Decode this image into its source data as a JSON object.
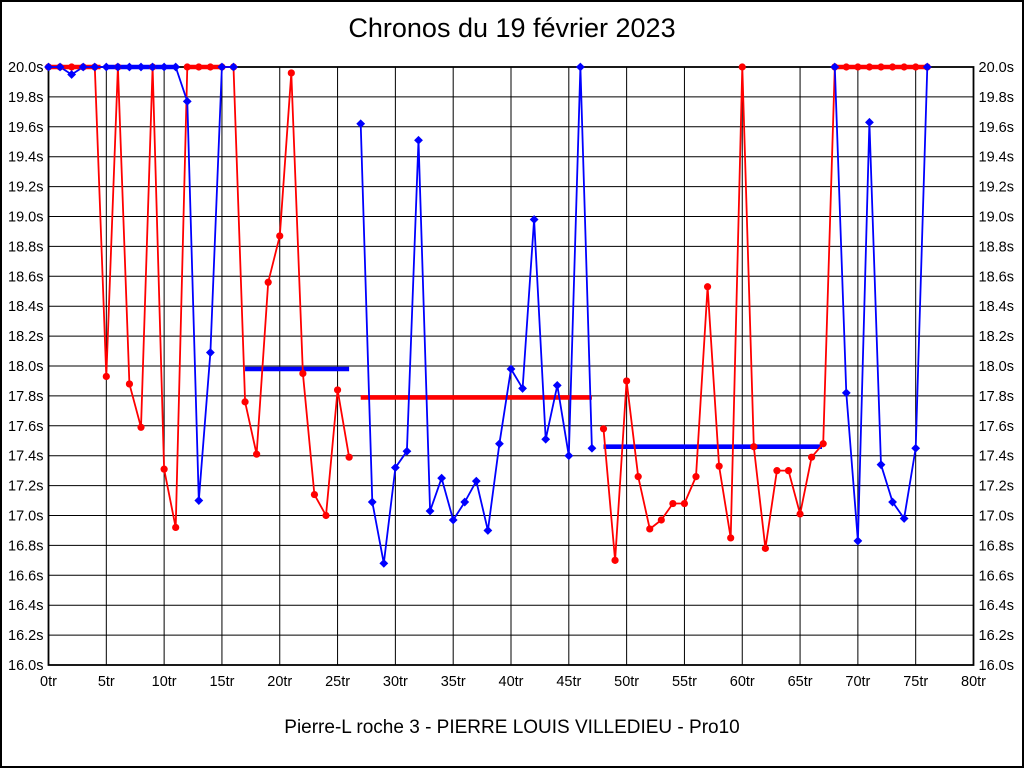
{
  "page": {
    "title": "Chronos du 19 février 2023",
    "footer": "Pierre-L roche 3 - PIERRE LOUIS VILLEDIEU - Pro10"
  },
  "chart_data": {
    "type": "line",
    "title": "Chronos du 19 février 2023",
    "xlabel": "",
    "ylabel": "",
    "x_unit": "tr",
    "y_unit": "s",
    "xlim": [
      0,
      80
    ],
    "ylim": [
      16.0,
      20.0
    ],
    "x_tick_step": 5,
    "y_tick_step": 0.2,
    "grid": true,
    "legend": "none",
    "clamp_max": 20.0,
    "x_tick_labels": [
      "0tr",
      "5tr",
      "10tr",
      "15tr",
      "20tr",
      "25tr",
      "30tr",
      "35tr",
      "40tr",
      "45tr",
      "50tr",
      "55tr",
      "60tr",
      "65tr",
      "70tr",
      "75tr",
      "80tr"
    ],
    "y_tick_labels": [
      "20.0s",
      "19.8s",
      "19.6s",
      "19.4s",
      "19.2s",
      "19.0s",
      "18.8s",
      "18.6s",
      "18.4s",
      "18.2s",
      "18.0s",
      "17.8s",
      "17.6s",
      "17.4s",
      "17.2s",
      "17.0s",
      "16.8s",
      "16.6s",
      "16.4s",
      "16.2s",
      "16.0s"
    ],
    "series": [
      {
        "name": "chrono-red",
        "color": "#ff0000",
        "marker": "circle",
        "points": [
          [
            0,
            20
          ],
          [
            1,
            20
          ],
          [
            2,
            20
          ],
          [
            3,
            20
          ],
          [
            4,
            20
          ],
          [
            5,
            17.93
          ],
          [
            6,
            20
          ],
          [
            7,
            17.88
          ],
          [
            8,
            17.59
          ],
          [
            9,
            20
          ],
          [
            10,
            17.31
          ],
          [
            11,
            16.92
          ],
          [
            12,
            20
          ],
          [
            13,
            20
          ],
          [
            14,
            20
          ],
          [
            15,
            20
          ],
          [
            16,
            20
          ],
          [
            17,
            17.76
          ],
          [
            18,
            17.41
          ],
          [
            19,
            18.56
          ],
          [
            20,
            18.87
          ],
          [
            21,
            19.96
          ],
          [
            22,
            17.95
          ],
          [
            23,
            17.14
          ],
          [
            24,
            17.0
          ],
          [
            25,
            17.84
          ],
          [
            26,
            17.39
          ],
          [
            48,
            17.58
          ],
          [
            49,
            16.7
          ],
          [
            50,
            17.9
          ],
          [
            51,
            17.26
          ],
          [
            52,
            16.91
          ],
          [
            53,
            16.97
          ],
          [
            54,
            17.08
          ],
          [
            55,
            17.08
          ],
          [
            56,
            17.26
          ],
          [
            57,
            18.53
          ],
          [
            58,
            17.33
          ],
          [
            59,
            16.85
          ],
          [
            60,
            20
          ],
          [
            61,
            17.46
          ],
          [
            62,
            16.78
          ],
          [
            63,
            17.3
          ],
          [
            64,
            17.3
          ],
          [
            65,
            17.01
          ],
          [
            66,
            17.39
          ],
          [
            67,
            17.48
          ],
          [
            68,
            20
          ],
          [
            69,
            20
          ],
          [
            70,
            20
          ],
          [
            71,
            20
          ],
          [
            72,
            20
          ],
          [
            73,
            20
          ],
          [
            74,
            20
          ],
          [
            75,
            20
          ],
          [
            76,
            20
          ]
        ]
      },
      {
        "name": "chrono-blue",
        "color": "#0000ff",
        "marker": "diamond",
        "points": [
          [
            0,
            20
          ],
          [
            1,
            20
          ],
          [
            2,
            19.95
          ],
          [
            3,
            20
          ],
          [
            4,
            20
          ],
          [
            5,
            20
          ],
          [
            6,
            20
          ],
          [
            7,
            20
          ],
          [
            8,
            20
          ],
          [
            9,
            20
          ],
          [
            10,
            20
          ],
          [
            11,
            20
          ],
          [
            12,
            19.77
          ],
          [
            13,
            17.1
          ],
          [
            14,
            18.09
          ],
          [
            15,
            20
          ],
          [
            16,
            20
          ],
          [
            27,
            19.62
          ],
          [
            28,
            17.09
          ],
          [
            29,
            16.68
          ],
          [
            30,
            17.32
          ],
          [
            31,
            17.43
          ],
          [
            32,
            19.51
          ],
          [
            33,
            17.03
          ],
          [
            34,
            17.25
          ],
          [
            35,
            16.97
          ],
          [
            36,
            17.09
          ],
          [
            37,
            17.23
          ],
          [
            38,
            16.9
          ],
          [
            39,
            17.48
          ],
          [
            40,
            17.98
          ],
          [
            41,
            17.85
          ],
          [
            42,
            18.98
          ],
          [
            43,
            17.51
          ],
          [
            44,
            17.87
          ],
          [
            45,
            17.4
          ],
          [
            46,
            20
          ],
          [
            47,
            17.45
          ],
          [
            68,
            20
          ],
          [
            69,
            17.82
          ],
          [
            70,
            16.83
          ],
          [
            71,
            19.63
          ],
          [
            72,
            17.34
          ],
          [
            73,
            17.09
          ],
          [
            74,
            16.98
          ],
          [
            75,
            17.45
          ],
          [
            76,
            20
          ]
        ]
      }
    ],
    "average_segments": [
      {
        "color": "#ff0000",
        "from": 0,
        "to": 4.5,
        "value": 20
      },
      {
        "color": "#0000ff",
        "from": 5,
        "to": 11.2,
        "value": 20
      },
      {
        "color": "#ff0000",
        "from": 11.8,
        "to": 15.1,
        "value": 20
      },
      {
        "color": "#0000ff",
        "from": 17,
        "to": 26,
        "value": 17.98
      },
      {
        "color": "#ff0000",
        "from": 27,
        "to": 47,
        "value": 17.79
      },
      {
        "color": "#0000ff",
        "from": 48,
        "to": 66.9,
        "value": 17.46
      },
      {
        "color": "#ff0000",
        "from": 68,
        "to": 76,
        "value": 20
      }
    ],
    "colors": {
      "grid": "#000000",
      "axis": "#000000",
      "text": "#000000",
      "background": "#ffffff"
    }
  }
}
